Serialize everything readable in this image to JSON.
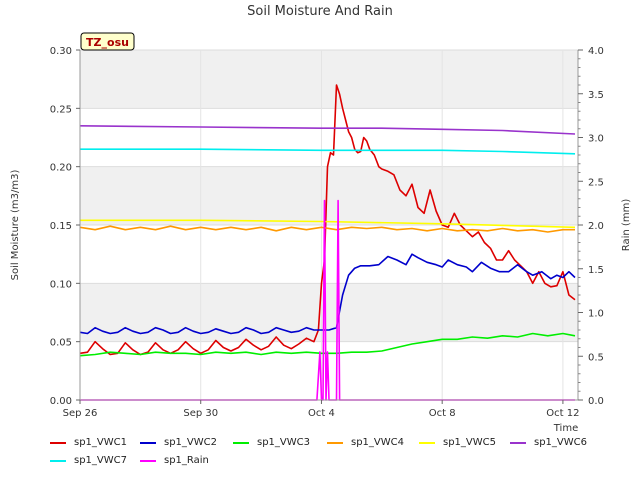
{
  "chart_data": {
    "type": "line",
    "title": "Soil Moisture And Rain",
    "badge": "TZ_osu",
    "xlabel": "Time",
    "ylabel_left": "Soil Moisture (m3/m3)",
    "ylabel_right": "Rain (mm)",
    "ylim_left": [
      0,
      0.3
    ],
    "ylim_right": [
      0,
      4.0
    ],
    "xlim": [
      0,
      16.5
    ],
    "x_unit": "days since Sep 26",
    "yticks_left": [
      "0.00",
      "0.05",
      "0.10",
      "0.15",
      "0.20",
      "0.25",
      "0.30"
    ],
    "yticks_right": [
      "0.0",
      "0.5",
      "1.0",
      "1.5",
      "2.0",
      "2.5",
      "3.0",
      "3.5",
      "4.0"
    ],
    "xticks": [
      {
        "value": 0,
        "label": "Sep 26"
      },
      {
        "value": 4,
        "label": "Sep 30"
      },
      {
        "value": 8,
        "label": "Oct 4"
      },
      {
        "value": 12,
        "label": "Oct 8"
      },
      {
        "value": 16,
        "label": "Oct 12"
      }
    ],
    "grid": "horizontal bands",
    "legend_position": "bottom",
    "series": [
      {
        "name": "sp1_VWC1",
        "color": "#dd0000",
        "axis": "left",
        "x": [
          0.0,
          0.25,
          0.5,
          0.75,
          1.0,
          1.25,
          1.5,
          1.75,
          2.0,
          2.25,
          2.5,
          2.75,
          3.0,
          3.25,
          3.5,
          3.75,
          4.0,
          4.25,
          4.5,
          4.75,
          5.0,
          5.25,
          5.5,
          5.75,
          6.0,
          6.25,
          6.5,
          6.75,
          7.0,
          7.25,
          7.5,
          7.75,
          7.9,
          8.0,
          8.1,
          8.2,
          8.3,
          8.4,
          8.5,
          8.6,
          8.7,
          8.8,
          8.9,
          9.0,
          9.1,
          9.2,
          9.3,
          9.4,
          9.5,
          9.6,
          9.75,
          9.9,
          10.0,
          10.2,
          10.4,
          10.6,
          10.8,
          11.0,
          11.2,
          11.4,
          11.6,
          11.8,
          12.0,
          12.2,
          12.4,
          12.6,
          12.8,
          13.0,
          13.2,
          13.4,
          13.6,
          13.8,
          14.0,
          14.2,
          14.4,
          14.6,
          14.8,
          15.0,
          15.2,
          15.4,
          15.6,
          15.8,
          16.0,
          16.2,
          16.4
        ],
        "y": [
          0.04,
          0.041,
          0.05,
          0.044,
          0.039,
          0.04,
          0.049,
          0.043,
          0.039,
          0.041,
          0.049,
          0.043,
          0.04,
          0.043,
          0.05,
          0.044,
          0.04,
          0.043,
          0.051,
          0.045,
          0.042,
          0.045,
          0.052,
          0.047,
          0.043,
          0.046,
          0.054,
          0.047,
          0.044,
          0.048,
          0.053,
          0.05,
          0.06,
          0.1,
          0.12,
          0.2,
          0.212,
          0.21,
          0.27,
          0.262,
          0.25,
          0.24,
          0.23,
          0.225,
          0.215,
          0.212,
          0.213,
          0.225,
          0.222,
          0.215,
          0.21,
          0.2,
          0.198,
          0.196,
          0.193,
          0.18,
          0.175,
          0.185,
          0.165,
          0.16,
          0.18,
          0.162,
          0.15,
          0.148,
          0.16,
          0.15,
          0.145,
          0.14,
          0.144,
          0.135,
          0.13,
          0.12,
          0.12,
          0.128,
          0.12,
          0.115,
          0.11,
          0.1,
          0.11,
          0.1,
          0.097,
          0.098,
          0.11,
          0.09,
          0.086
        ]
      },
      {
        "name": "sp1_VWC2",
        "color": "#0000cc",
        "axis": "left",
        "x": [
          0.0,
          0.25,
          0.5,
          0.75,
          1.0,
          1.25,
          1.5,
          1.75,
          2.0,
          2.25,
          2.5,
          2.75,
          3.0,
          3.25,
          3.5,
          3.75,
          4.0,
          4.25,
          4.5,
          4.75,
          5.0,
          5.25,
          5.5,
          5.75,
          6.0,
          6.25,
          6.5,
          6.75,
          7.0,
          7.25,
          7.5,
          7.75,
          8.0,
          8.25,
          8.5,
          8.7,
          8.9,
          9.1,
          9.3,
          9.6,
          9.9,
          10.2,
          10.5,
          10.8,
          11.0,
          11.2,
          11.5,
          11.8,
          12.0,
          12.2,
          12.5,
          12.8,
          13.0,
          13.3,
          13.6,
          13.9,
          14.2,
          14.5,
          14.8,
          15.0,
          15.3,
          15.6,
          15.8,
          16.0,
          16.2,
          16.4
        ],
        "y": [
          0.058,
          0.057,
          0.062,
          0.059,
          0.057,
          0.058,
          0.062,
          0.059,
          0.057,
          0.058,
          0.062,
          0.06,
          0.057,
          0.058,
          0.062,
          0.059,
          0.057,
          0.058,
          0.061,
          0.059,
          0.057,
          0.058,
          0.062,
          0.06,
          0.057,
          0.058,
          0.062,
          0.06,
          0.058,
          0.059,
          0.062,
          0.06,
          0.06,
          0.06,
          0.062,
          0.09,
          0.107,
          0.113,
          0.115,
          0.115,
          0.116,
          0.123,
          0.12,
          0.116,
          0.125,
          0.122,
          0.118,
          0.116,
          0.114,
          0.12,
          0.116,
          0.114,
          0.11,
          0.118,
          0.113,
          0.11,
          0.11,
          0.116,
          0.11,
          0.107,
          0.11,
          0.104,
          0.107,
          0.105,
          0.11,
          0.105
        ]
      },
      {
        "name": "sp1_VWC3",
        "color": "#00ee00",
        "axis": "left",
        "x": [
          0.0,
          0.5,
          1.0,
          1.5,
          2.0,
          2.5,
          3.0,
          3.5,
          4.0,
          4.5,
          5.0,
          5.5,
          6.0,
          6.5,
          7.0,
          7.5,
          8.0,
          8.5,
          9.0,
          9.5,
          10.0,
          10.5,
          11.0,
          11.5,
          12.0,
          12.5,
          13.0,
          13.5,
          14.0,
          14.5,
          15.0,
          15.5,
          16.0,
          16.4
        ],
        "y": [
          0.038,
          0.039,
          0.041,
          0.04,
          0.039,
          0.041,
          0.04,
          0.04,
          0.039,
          0.041,
          0.04,
          0.041,
          0.039,
          0.041,
          0.04,
          0.041,
          0.04,
          0.04,
          0.041,
          0.041,
          0.042,
          0.045,
          0.048,
          0.05,
          0.052,
          0.052,
          0.054,
          0.053,
          0.055,
          0.054,
          0.057,
          0.055,
          0.057,
          0.055
        ]
      },
      {
        "name": "sp1_VWC4",
        "color": "#ff9900",
        "axis": "left",
        "x": [
          0.0,
          0.5,
          1.0,
          1.5,
          2.0,
          2.5,
          3.0,
          3.5,
          4.0,
          4.5,
          5.0,
          5.5,
          6.0,
          6.5,
          7.0,
          7.5,
          8.0,
          8.5,
          9.0,
          9.5,
          10.0,
          10.5,
          11.0,
          11.5,
          12.0,
          12.5,
          13.0,
          13.5,
          14.0,
          14.5,
          15.0,
          15.5,
          16.0,
          16.4
        ],
        "y": [
          0.148,
          0.146,
          0.149,
          0.146,
          0.148,
          0.146,
          0.149,
          0.146,
          0.148,
          0.146,
          0.148,
          0.146,
          0.148,
          0.145,
          0.148,
          0.146,
          0.148,
          0.146,
          0.148,
          0.147,
          0.148,
          0.146,
          0.147,
          0.145,
          0.147,
          0.145,
          0.146,
          0.145,
          0.147,
          0.145,
          0.146,
          0.144,
          0.146,
          0.146
        ]
      },
      {
        "name": "sp1_VWC5",
        "color": "#ffff00",
        "axis": "left",
        "x": [
          0.0,
          4.0,
          8.0,
          12.0,
          16.4
        ],
        "y": [
          0.154,
          0.154,
          0.153,
          0.151,
          0.148
        ]
      },
      {
        "name": "sp1_VWC6",
        "color": "#9933cc",
        "axis": "left",
        "x": [
          0.0,
          4.0,
          8.0,
          10.0,
          12.0,
          14.0,
          16.4
        ],
        "y": [
          0.235,
          0.234,
          0.233,
          0.233,
          0.232,
          0.231,
          0.228
        ]
      },
      {
        "name": "sp1_VWC7",
        "color": "#00eeee",
        "axis": "left",
        "x": [
          0.0,
          4.0,
          8.0,
          12.0,
          14.0,
          16.4
        ],
        "y": [
          0.215,
          0.215,
          0.214,
          0.214,
          0.213,
          0.211
        ]
      },
      {
        "name": "sp1_Rain",
        "color": "#ff00ff",
        "axis": "right",
        "x": [
          0.0,
          7.85,
          7.95,
          8.0,
          8.05,
          8.1,
          8.15,
          8.2,
          8.25,
          8.3,
          8.35,
          8.4,
          8.45,
          8.5,
          8.55,
          8.6,
          8.65,
          8.7,
          16.4
        ],
        "y": [
          0.0,
          0.0,
          0.55,
          0.0,
          0.0,
          2.28,
          0.0,
          0.55,
          0.0,
          0.0,
          0.0,
          0.0,
          0.0,
          0.0,
          2.28,
          0.0,
          0.0,
          0.0,
          0.0
        ]
      }
    ]
  }
}
